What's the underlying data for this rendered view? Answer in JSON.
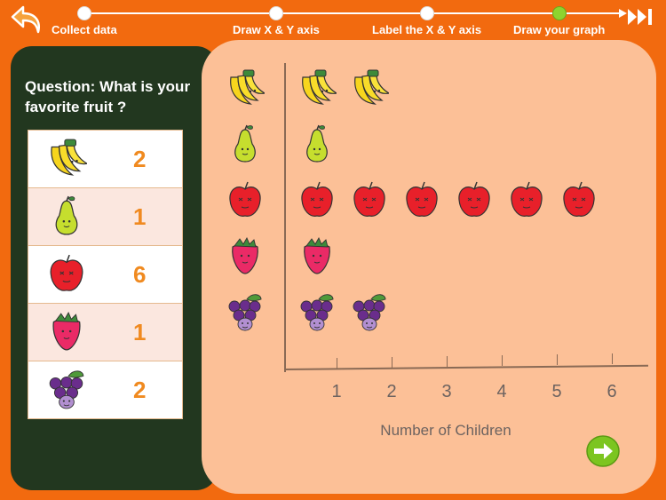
{
  "steps": [
    {
      "label": "Collect data",
      "active": false
    },
    {
      "label": "Draw X & Y axis",
      "active": false
    },
    {
      "label": "Label the X & Y axis",
      "active": false
    },
    {
      "label": "Draw your graph",
      "active": true
    }
  ],
  "question": "Question: What is your favorite fruit ?",
  "table": [
    {
      "fruit": "banana",
      "count": "2"
    },
    {
      "fruit": "pear",
      "count": "1"
    },
    {
      "fruit": "apple",
      "count": "6"
    },
    {
      "fruit": "strawberry",
      "count": "1"
    },
    {
      "fruit": "grapes",
      "count": "2"
    }
  ],
  "chart_data": {
    "type": "bar",
    "categories": [
      "banana",
      "pear",
      "apple",
      "strawberry",
      "grapes"
    ],
    "values": [
      2,
      1,
      6,
      1,
      2
    ],
    "xlabel": "Number of Children",
    "ylabel": "",
    "x_ticks": [
      "1",
      "2",
      "3",
      "4",
      "5",
      "6"
    ],
    "xlim": [
      0,
      6
    ]
  },
  "icons": {
    "back": "back-arrow-icon",
    "skip": "fast-forward-icon",
    "next": "next-arrow-icon"
  },
  "colors": {
    "background": "#f26a0f",
    "panel": "#22371f",
    "graph_area": "#fcc097",
    "count_text": "#f08a20",
    "active_step": "#8ed32f"
  }
}
